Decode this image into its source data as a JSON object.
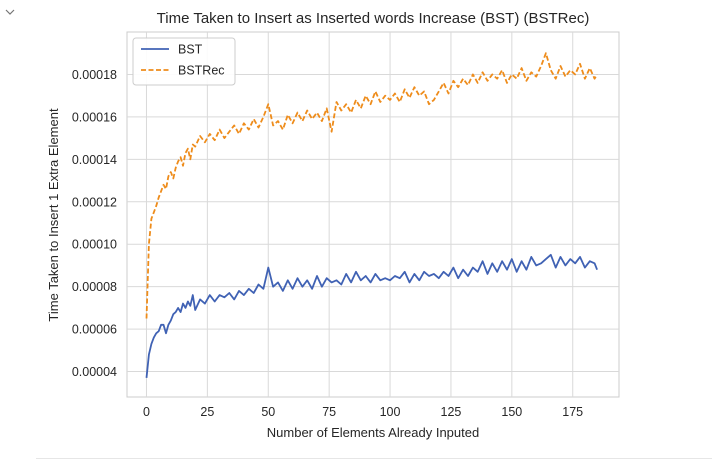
{
  "cell": {
    "collapse_icon": "chevron-down-icon"
  },
  "chart_data": {
    "type": "line",
    "title": "Time Taken to Insert as Inserted words Increase (BST) (BSTRec)",
    "xlabel": "Number of Elements Already Inputed",
    "ylabel": "Time Taken to Insert 1 Extra Element",
    "xlim": [
      -8,
      194
    ],
    "ylim": [
      2.8e-05,
      0.0002
    ],
    "xticks": [
      0,
      25,
      50,
      75,
      100,
      125,
      150,
      175
    ],
    "yticks": [
      4e-05,
      6e-05,
      8e-05,
      0.0001,
      0.00012,
      0.00014,
      0.00016,
      0.00018
    ],
    "xtick_labels": [
      "0",
      "25",
      "50",
      "75",
      "100",
      "125",
      "150",
      "175"
    ],
    "ytick_labels": [
      "0.00004",
      "0.00006",
      "0.00008",
      "0.00010",
      "0.00012",
      "0.00014",
      "0.00016",
      "0.00018"
    ],
    "grid": true,
    "legend_position": "top-left",
    "series": [
      {
        "name": "BST",
        "color": "#4062b4",
        "style": "solid",
        "x": [
          0,
          1,
          2,
          3,
          4,
          5,
          6,
          7,
          8,
          9,
          10,
          11,
          12,
          13,
          14,
          15,
          16,
          17,
          18,
          19,
          20,
          22,
          24,
          26,
          28,
          30,
          32,
          34,
          36,
          38,
          40,
          42,
          44,
          46,
          48,
          50,
          52,
          54,
          56,
          58,
          60,
          62,
          64,
          66,
          68,
          70,
          72,
          74,
          76,
          78,
          80,
          82,
          84,
          86,
          88,
          90,
          92,
          94,
          96,
          98,
          100,
          102,
          104,
          106,
          108,
          110,
          112,
          114,
          116,
          118,
          120,
          122,
          124,
          126,
          128,
          130,
          132,
          134,
          136,
          138,
          140,
          142,
          144,
          146,
          148,
          150,
          152,
          154,
          156,
          158,
          160,
          162,
          164,
          166,
          168,
          170,
          172,
          174,
          176,
          178,
          180,
          182,
          184,
          185
        ],
        "y": [
          3.7e-05,
          4.8e-05,
          5.3e-05,
          5.6e-05,
          5.8e-05,
          5.9e-05,
          6.2e-05,
          6.2e-05,
          5.8e-05,
          6.2e-05,
          6.4e-05,
          6.7e-05,
          6.8e-05,
          7e-05,
          6.8e-05,
          7.2e-05,
          7e-05,
          7.3e-05,
          7.1e-05,
          7.6e-05,
          6.9e-05,
          7.4e-05,
          7.2e-05,
          7.6e-05,
          7.3e-05,
          7.6e-05,
          7.5e-05,
          7.7e-05,
          7.4e-05,
          7.8e-05,
          7.6e-05,
          7.9e-05,
          7.7e-05,
          8.1e-05,
          7.9e-05,
          8.9e-05,
          8e-05,
          8.2e-05,
          7.8e-05,
          8.3e-05,
          7.9e-05,
          8.4e-05,
          8e-05,
          8.3e-05,
          7.9e-05,
          8.5e-05,
          8e-05,
          8.4e-05,
          8.2e-05,
          8.3e-05,
          8.1e-05,
          8.6e-05,
          8.2e-05,
          8.7e-05,
          8.3e-05,
          8.5e-05,
          8.2e-05,
          8.6e-05,
          8.3e-05,
          8.4e-05,
          8.3e-05,
          8.5e-05,
          8.4e-05,
          8.7e-05,
          8.2e-05,
          8.6e-05,
          8.3e-05,
          8.7e-05,
          8.5e-05,
          8.6e-05,
          8.4e-05,
          8.7e-05,
          8.5e-05,
          8.9e-05,
          8.4e-05,
          8.8e-05,
          8.5e-05,
          8.9e-05,
          8.7e-05,
          9.2e-05,
          8.6e-05,
          9.1e-05,
          8.7e-05,
          9.2e-05,
          8.8e-05,
          9.3e-05,
          8.7e-05,
          9.2e-05,
          8.8e-05,
          9.4e-05,
          9e-05,
          9.1e-05,
          9.3e-05,
          9.5e-05,
          8.9e-05,
          9.4e-05,
          9e-05,
          9.3e-05,
          9.1e-05,
          9.4e-05,
          8.9e-05,
          9.2e-05,
          9.1e-05,
          8.8e-05
        ]
      },
      {
        "name": "BSTRec",
        "color": "#ee8c1b",
        "style": "dashed",
        "x": [
          0,
          1,
          2,
          3,
          4,
          5,
          6,
          7,
          8,
          9,
          10,
          11,
          12,
          13,
          14,
          15,
          16,
          17,
          18,
          19,
          20,
          22,
          24,
          26,
          28,
          30,
          32,
          34,
          36,
          38,
          40,
          42,
          44,
          46,
          48,
          50,
          52,
          54,
          56,
          58,
          60,
          62,
          64,
          66,
          68,
          70,
          72,
          74,
          76,
          78,
          80,
          82,
          84,
          86,
          88,
          90,
          92,
          94,
          96,
          98,
          100,
          102,
          104,
          106,
          108,
          110,
          112,
          114,
          116,
          118,
          120,
          122,
          124,
          126,
          128,
          130,
          132,
          134,
          136,
          138,
          140,
          142,
          144,
          146,
          148,
          150,
          152,
          154,
          156,
          158,
          160,
          162,
          164,
          166,
          168,
          170,
          172,
          174,
          176,
          178,
          180,
          182,
          184,
          185
        ],
        "y": [
          6.5e-05,
          0.0001,
          0.000112,
          0.000115,
          0.000118,
          0.000122,
          0.000125,
          0.000128,
          0.000126,
          0.000132,
          0.000134,
          0.000131,
          0.000136,
          0.000139,
          0.000141,
          0.000137,
          0.000143,
          0.000145,
          0.00014,
          0.000147,
          0.000146,
          0.000151,
          0.000148,
          0.000152,
          0.000149,
          0.000154,
          0.00015,
          0.000153,
          0.000156,
          0.000152,
          0.000157,
          0.000154,
          0.000159,
          0.000155,
          0.00016,
          0.000166,
          0.000156,
          0.000158,
          0.000154,
          0.000161,
          0.000157,
          0.000162,
          0.000158,
          0.000163,
          0.000159,
          0.000162,
          0.000158,
          0.000164,
          0.000153,
          0.000167,
          0.000163,
          0.000166,
          0.000162,
          0.000168,
          0.000164,
          0.00017,
          0.000166,
          0.000172,
          0.000167,
          0.00017,
          0.000168,
          0.000171,
          0.000167,
          0.000173,
          0.000169,
          0.000174,
          0.00017,
          0.000172,
          0.000166,
          0.000168,
          0.000172,
          0.000176,
          0.000171,
          0.000177,
          0.000174,
          0.000178,
          0.000175,
          0.00018,
          0.000176,
          0.000181,
          0.000177,
          0.00018,
          0.000178,
          0.000182,
          0.000176,
          0.00018,
          0.000178,
          0.000183,
          0.000177,
          0.000181,
          0.000179,
          0.000184,
          0.00019,
          0.000182,
          0.000178,
          0.000184,
          0.000179,
          0.000182,
          0.00018,
          0.000185,
          0.000178,
          0.000183,
          0.000178,
          0.00018
        ]
      }
    ]
  }
}
